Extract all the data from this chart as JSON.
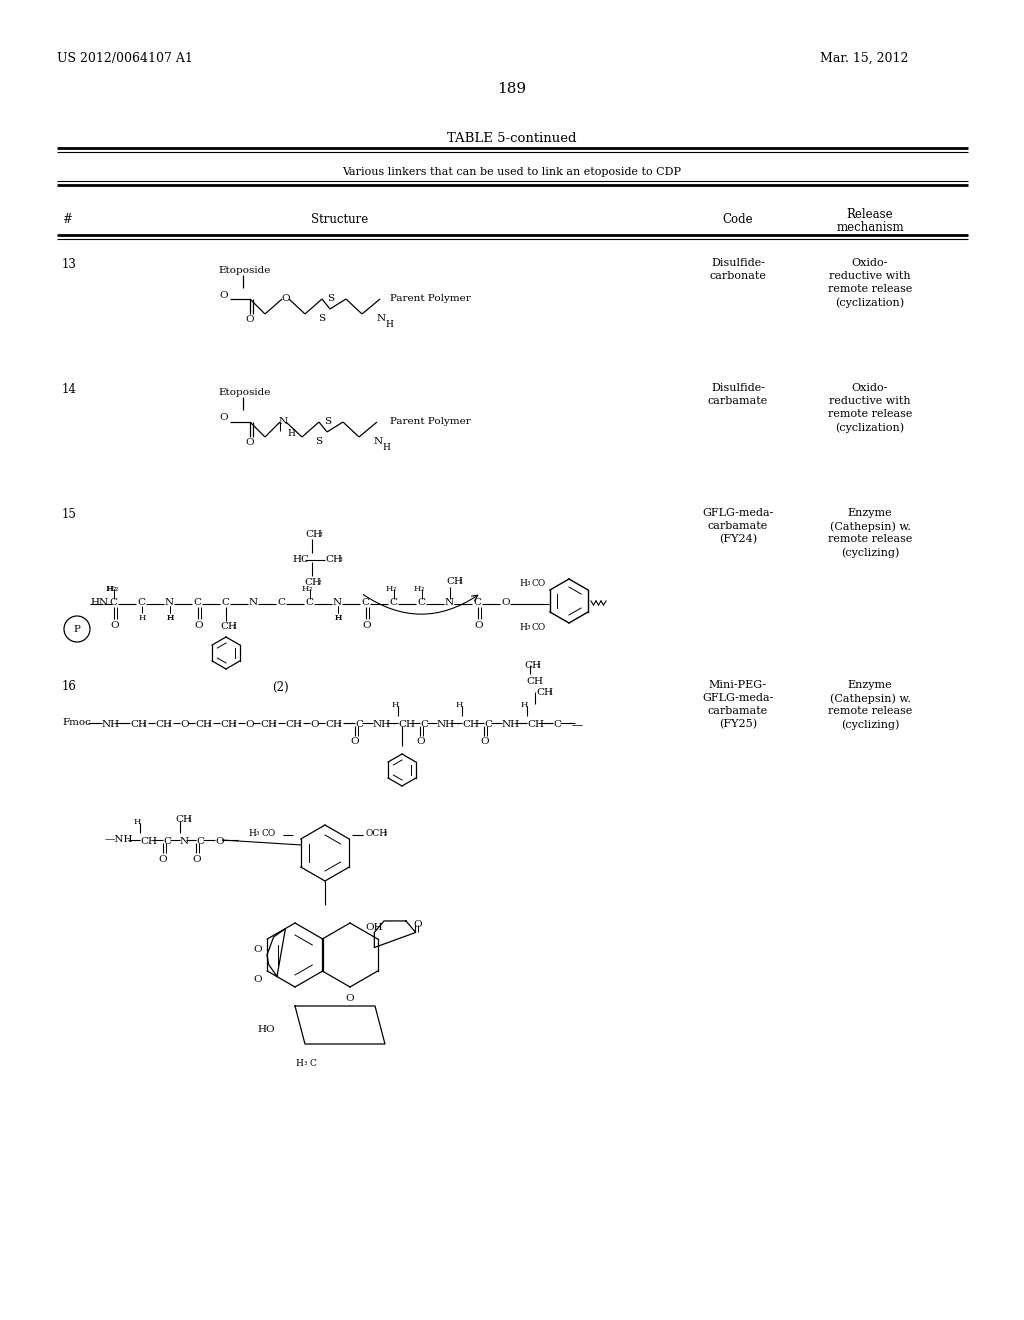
{
  "page_number": "189",
  "top_left": "US 2012/0064107 A1",
  "top_right": "Mar. 15, 2012",
  "table_title": "TABLE 5-continued",
  "table_subtitle": "Various linkers that can be used to link an etoposide to CDP",
  "col_num": "#",
  "col_struct": "Structure",
  "col_code": "Code",
  "col_rel1": "Release",
  "col_rel2": "mechanism",
  "r13_num": "13",
  "r13_c1": "Disulfide-",
  "r13_c2": "carbonate",
  "r13_m1": "Oxido-",
  "r13_m2": "reductive with",
  "r13_m3": "remote release",
  "r13_m4": "(cyclization)",
  "r14_num": "14",
  "r14_c1": "Disulfide-",
  "r14_c2": "carbamate",
  "r14_m1": "Oxido-",
  "r14_m2": "reductive with",
  "r14_m3": "remote release",
  "r14_m4": "(cyclization)",
  "r15_num": "15",
  "r15_c1": "GFLG-meda-",
  "r15_c2": "carbamate",
  "r15_c3": "(FY24)",
  "r15_m1": "Enzyme",
  "r15_m2": "(Cathepsin) w.",
  "r15_m3": "remote release",
  "r15_m4": "(cyclizing)",
  "r15_label": "(2)",
  "r16_num": "16",
  "r16_c1": "Mini-PEG-",
  "r16_c2": "GFLG-meda-",
  "r16_c3": "carbamate",
  "r16_c4": "(FY25)",
  "r16_m1": "Enzyme",
  "r16_m2": "(Cathepsin) w.",
  "r16_m3": "remote release",
  "r16_m4": "(cyclizing)",
  "lbl_etoposide": "Etoposide",
  "lbl_parent": "Parent Polymer",
  "lbl_fmoc": "Fmoc",
  "bg": "#ffffff"
}
